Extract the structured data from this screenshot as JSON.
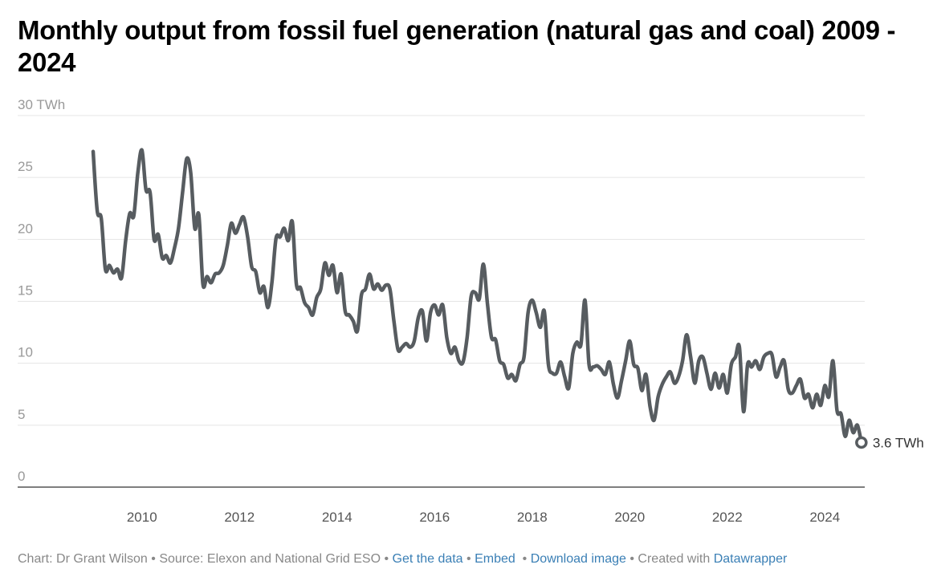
{
  "title": "Monthly output from fossil fuel generation (natural gas and coal) 2009 - 2024",
  "footer": {
    "credit": "Chart: Dr Grant Wilson",
    "source": "Source: Elexon and National Grid ESO",
    "get_data": "Get the data",
    "embed": "Embed",
    "download": "Download image",
    "created_with": "Created with",
    "datawrapper": "Datawrapper",
    "separator": " • "
  },
  "colors": {
    "line": "#575c60",
    "grid": "#e5e5e5",
    "baseline": "#333333",
    "link": "#3a7fb5"
  },
  "chart_data": {
    "type": "line",
    "title": "Monthly output from fossil fuel generation (natural gas and coal) 2009 - 2024",
    "xlabel": "",
    "ylabel": "TWh",
    "ylim": [
      0,
      30
    ],
    "yticks": [
      0,
      5,
      10,
      15,
      20,
      25,
      30
    ],
    "ytick_labels": [
      "0",
      "5",
      "10",
      "15",
      "20",
      "25",
      "30 TWh"
    ],
    "xticks": [
      2010,
      2012,
      2014,
      2016,
      2018,
      2020,
      2022,
      2024
    ],
    "xtick_labels": [
      "2010",
      "2012",
      "2014",
      "2016",
      "2018",
      "2020",
      "2022",
      "2024"
    ],
    "x_start": "2009-01",
    "x_end": "2024-08",
    "frequency": "monthly",
    "grid": true,
    "end_label": "3.6 TWh",
    "series": [
      {
        "name": "Fossil fuel generation (TWh)",
        "values": [
          27.1,
          22.3,
          21.7,
          17.6,
          17.9,
          17.3,
          17.6,
          16.9,
          19.9,
          22.1,
          21.9,
          25.4,
          27.2,
          24.0,
          23.8,
          20.0,
          20.4,
          18.5,
          18.7,
          18.1,
          19.3,
          20.9,
          23.8,
          26.5,
          25.4,
          20.9,
          22.0,
          16.4,
          17.0,
          16.5,
          17.2,
          17.3,
          17.9,
          19.5,
          21.3,
          20.5,
          21.2,
          21.8,
          20.2,
          17.8,
          17.4,
          15.7,
          16.2,
          14.5,
          16.6,
          20.1,
          20.2,
          20.9,
          19.9,
          21.4,
          16.4,
          16.1,
          14.9,
          14.5,
          13.9,
          15.3,
          16.0,
          18.1,
          17.1,
          17.9,
          15.7,
          17.2,
          14.2,
          13.9,
          13.4,
          12.6,
          15.5,
          16.0,
          17.2,
          16.0,
          16.4,
          15.9,
          16.3,
          16.0,
          13.4,
          11.1,
          11.3,
          11.6,
          11.3,
          11.8,
          13.7,
          14.2,
          11.8,
          14.1,
          14.7,
          13.9,
          14.7,
          12.1,
          10.8,
          11.3,
          10.2,
          10.1,
          12.1,
          15.4,
          15.7,
          15.2,
          18.0,
          14.8,
          12.1,
          11.9,
          10.2,
          9.9,
          8.8,
          9.1,
          8.6,
          9.9,
          10.5,
          14.1,
          15.1,
          14.1,
          12.9,
          14.2,
          9.9,
          9.2,
          9.2,
          10.1,
          8.9,
          8.0,
          10.8,
          11.7,
          11.5,
          15.1,
          9.9,
          9.7,
          9.8,
          9.5,
          9.1,
          10.1,
          8.3,
          7.2,
          8.6,
          10.2,
          11.8,
          9.9,
          9.6,
          7.8,
          9.1,
          6.5,
          5.4,
          7.3,
          8.3,
          8.9,
          9.3,
          8.4,
          8.9,
          10.2,
          12.3,
          10.5,
          8.4,
          10.2,
          10.5,
          9.2,
          7.9,
          9.2,
          8.0,
          9.1,
          7.6,
          9.9,
          10.5,
          11.3,
          6.1,
          9.9,
          9.7,
          10.2,
          9.5,
          10.5,
          10.8,
          10.7,
          8.9,
          9.7,
          10.2,
          7.9,
          7.6,
          8.2,
          8.7,
          7.2,
          7.5,
          6.4,
          7.5,
          6.6,
          8.2,
          7.3,
          10.2,
          6.2,
          5.9,
          4.1,
          5.4,
          4.4,
          5.0,
          3.6
        ]
      }
    ]
  }
}
